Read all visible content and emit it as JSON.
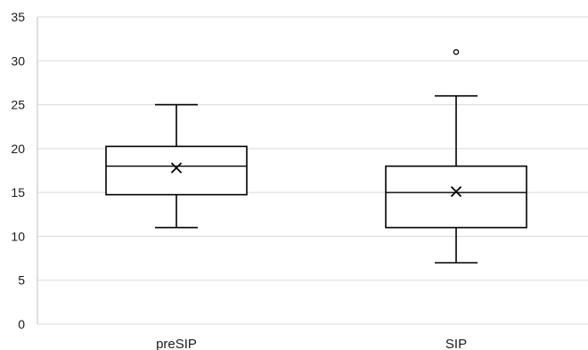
{
  "chart_data": {
    "type": "boxplot",
    "title": "",
    "xlabel": "",
    "ylabel": "",
    "ylim": [
      0,
      35
    ],
    "y_ticks": [
      0,
      5,
      10,
      15,
      20,
      25,
      30,
      35
    ],
    "grid": true,
    "legend": "none",
    "categories": [
      "preSIP",
      "SIP"
    ],
    "boxes": [
      {
        "category": "preSIP",
        "min": 11,
        "q1": 14.75,
        "median": 18,
        "q3": 20.25,
        "max": 25,
        "mean": 17.8,
        "outliers": []
      },
      {
        "category": "SIP",
        "min": 7,
        "q1": 11,
        "median": 15,
        "q3": 18,
        "max": 26,
        "mean": 15.1,
        "outliers": [
          31
        ]
      }
    ],
    "colors": {
      "box_fill": "#ffffff",
      "stroke": "#000000",
      "grid": "#d9d9d9"
    }
  }
}
